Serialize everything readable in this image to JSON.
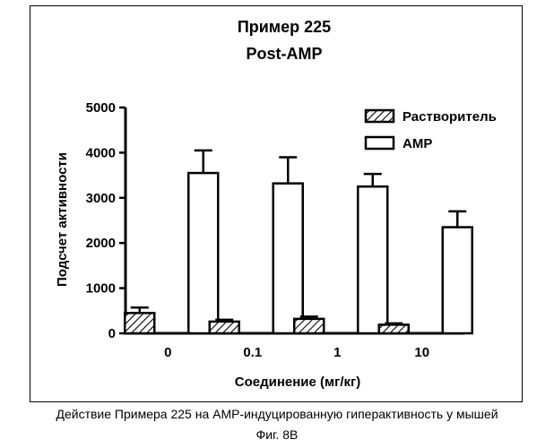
{
  "chart_data": {
    "type": "bar",
    "title": [
      "Пример 225",
      "Post-AMP"
    ],
    "xlabel": "Соединение (мг/кг)",
    "ylabel": "Подсчет активности",
    "categories": [
      "0",
      "0.1",
      "1",
      "10"
    ],
    "ylim": [
      0,
      5000
    ],
    "yticks": [
      "0",
      "1000",
      "2000",
      "3000",
      "4000",
      "5000"
    ],
    "legend_position": "top-right",
    "series": [
      {
        "name": "Растворитель",
        "fill": "hatched",
        "values": [
          450,
          260,
          320,
          190
        ],
        "errors": [
          120,
          40,
          50,
          30
        ]
      },
      {
        "name": "AMP",
        "fill": "white",
        "values": [
          3550,
          3320,
          3250,
          2350
        ],
        "errors": [
          500,
          580,
          280,
          350
        ]
      }
    ]
  },
  "colors": {
    "stroke": "#000000",
    "background": "#ffffff"
  },
  "caption": {
    "main": "Действие Примера 225 на AMP-индуцированную гиперактивность у мышей",
    "figure": "Фиг. 8В"
  }
}
